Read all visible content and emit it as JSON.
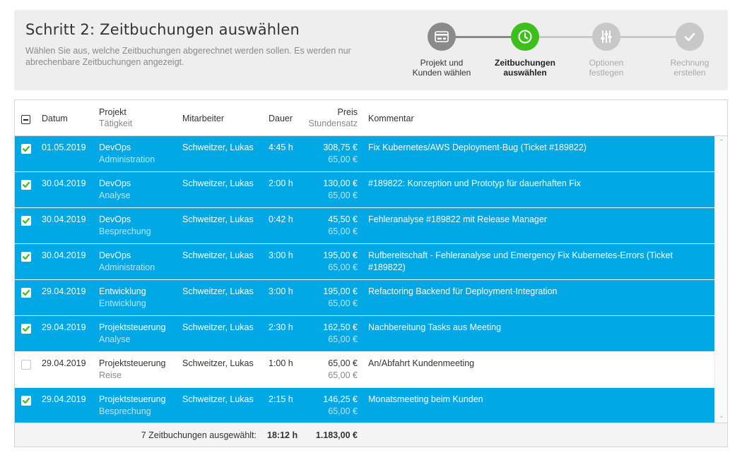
{
  "header": {
    "title": "Schritt 2: Zeitbuchungen auswählen",
    "subtitle": "Wählen Sie aus, welche Zeitbuchungen abgerechnet werden sollen. Es werden nur abrechenbare Zeitbuchungen angezeigt."
  },
  "wizard": {
    "steps": [
      {
        "line1": "Projekt und",
        "line2": "Kunden wählen",
        "state": "past",
        "icon": "invoice-icon"
      },
      {
        "line1": "Zeitbuchungen",
        "line2": "auswählen",
        "state": "active",
        "icon": "clock-icon"
      },
      {
        "line1": "Optionen",
        "line2": "festlegen",
        "state": "future",
        "icon": "sliders-icon"
      },
      {
        "line1": "Rechnung",
        "line2": "erstellen",
        "state": "future",
        "icon": "check-icon"
      }
    ]
  },
  "columns": {
    "datum": "Datum",
    "projekt": "Projekt",
    "taetigkeit": "Tätigkeit",
    "mitarbeiter": "Mitarbeiter",
    "dauer": "Dauer",
    "preis": "Preis",
    "stundensatz": "Stundensatz",
    "kommentar": "Kommentar"
  },
  "rows": [
    {
      "selected": true,
      "datum": "01.05.2019",
      "projekt": "DevOps",
      "taetigkeit": "Administration",
      "mitarbeiter": "Schweitzer, Lukas",
      "dauer": "4:45 h",
      "preis": "308,75 €",
      "satz": "65,00 €",
      "kommentar": "Fix Kubernetes/AWS Deployment-Bug (Ticket #189822)",
      "kommentar2": ""
    },
    {
      "selected": true,
      "datum": "30.04.2019",
      "projekt": "DevOps",
      "taetigkeit": "Analyse",
      "mitarbeiter": "Schweitzer, Lukas",
      "dauer": "2:00 h",
      "preis": "130,00 €",
      "satz": "65,00 €",
      "kommentar": "#189822: Konzeption und Prototyp für dauerhaften Fix",
      "kommentar2": ""
    },
    {
      "selected": true,
      "datum": "30.04.2019",
      "projekt": "DevOps",
      "taetigkeit": "Besprechung",
      "mitarbeiter": "Schweitzer, Lukas",
      "dauer": "0:42 h",
      "preis": "45,50 €",
      "satz": "65,00 €",
      "kommentar": "Fehleranalyse #189822 mit Release Manager",
      "kommentar2": ""
    },
    {
      "selected": true,
      "datum": "30.04.2019",
      "projekt": "DevOps",
      "taetigkeit": "Administration",
      "mitarbeiter": "Schweitzer, Lukas",
      "dauer": "3:00 h",
      "preis": "195,00 €",
      "satz": "65,00 €",
      "kommentar": "Rufbereitschaft - Fehleranalyse und Emergency Fix Kubernetes-Errors (Ticket",
      "kommentar2": "#189822)"
    },
    {
      "selected": true,
      "datum": "29.04.2019",
      "projekt": "Entwicklung",
      "taetigkeit": "Entwicklung",
      "mitarbeiter": "Schweitzer, Lukas",
      "dauer": "3:00 h",
      "preis": "195,00 €",
      "satz": "65,00 €",
      "kommentar": "Refactoring Backend für Deployment-Integration",
      "kommentar2": ""
    },
    {
      "selected": true,
      "datum": "29.04.2019",
      "projekt": "Projektsteuerung",
      "taetigkeit": "Analyse",
      "mitarbeiter": "Schweitzer, Lukas",
      "dauer": "2:30 h",
      "preis": "162,50 €",
      "satz": "65,00 €",
      "kommentar": "Nachbereitung Tasks aus Meeting",
      "kommentar2": ""
    },
    {
      "selected": false,
      "datum": "29.04.2019",
      "projekt": "Projektsteuerung",
      "taetigkeit": "Reise",
      "mitarbeiter": "Schweitzer, Lukas",
      "dauer": "1:00 h",
      "preis": "65,00 €",
      "satz": "65,00 €",
      "kommentar": "An/Abfahrt Kundenmeeting",
      "kommentar2": ""
    },
    {
      "selected": true,
      "datum": "29.04.2019",
      "projekt": "Projektsteuerung",
      "taetigkeit": "Besprechung",
      "mitarbeiter": "Schweitzer, Lukas",
      "dauer": "2:15 h",
      "preis": "146,25 €",
      "satz": "65,00 €",
      "kommentar": "Monatsmeeting beim Kunden",
      "kommentar2": ""
    }
  ],
  "footer": {
    "summary": "7 Zeitbuchungen ausgewählt:",
    "dauer": "18:12 h",
    "preis": "1.183,00 €"
  },
  "colors": {
    "selected_row": "#00a8e6",
    "active_step": "#3fbf1d",
    "checkbox_check": "#3fbf1d"
  }
}
